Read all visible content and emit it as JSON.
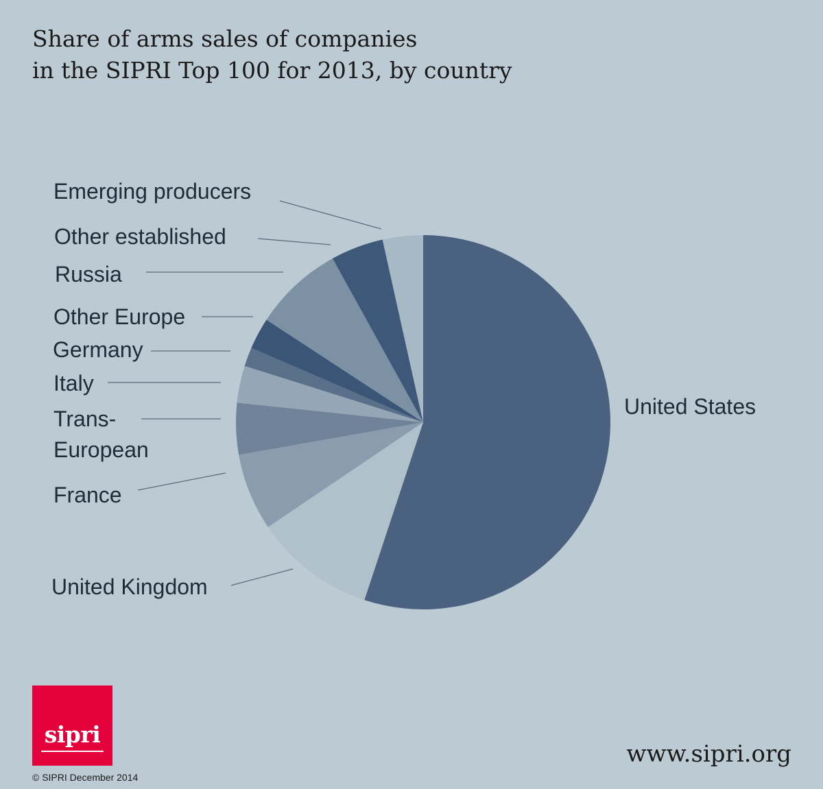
{
  "title_lines": [
    "Share of arms sales of companies",
    "in the SIPRI Top 100 for 2013, by country"
  ],
  "chart_data": {
    "type": "pie",
    "title": "Share of arms sales of companies in the SIPRI Top 100 for 2013, by country",
    "start_angle_deg": 0,
    "direction": "clockwise",
    "slices": [
      {
        "label": "United States",
        "value": 56.9,
        "color": "#4a617f"
      },
      {
        "label": "United Kingdom",
        "value": 10.8,
        "color": "#b0c1cc"
      },
      {
        "label": "France",
        "value": 6.9,
        "color": "#8a9cad"
      },
      {
        "label": "Trans-European",
        "value": 4.6,
        "color": "#6f8399"
      },
      {
        "label": "Italy",
        "value": 3.3,
        "color": "#95a6b6"
      },
      {
        "label": "Germany",
        "value": 1.7,
        "color": "#5a6f8a"
      },
      {
        "label": "Other Europe",
        "value": 2.8,
        "color": "#3a5575"
      },
      {
        "label": "Russia",
        "value": 8.0,
        "color": "#7d91a4"
      },
      {
        "label": "Other established",
        "value": 4.7,
        "color": "#3d5878"
      },
      {
        "label": "Emerging producers",
        "value": 3.6,
        "color": "#a8b9c6"
      }
    ]
  },
  "labels": {
    "united_states": "United States",
    "united_kingdom": "United Kingdom",
    "france": "France",
    "trans_european_1": "Trans-",
    "trans_european_2": "European",
    "italy": "Italy",
    "germany": "Germany",
    "other_europe": "Other Europe",
    "russia": "Russia",
    "other_established": "Other established",
    "emerging_producers": "Emerging producers"
  },
  "logo": {
    "text": "sipri",
    "color": "#e3003b"
  },
  "copyright": "© SIPRI December 2014",
  "url": "www.sipri.org"
}
